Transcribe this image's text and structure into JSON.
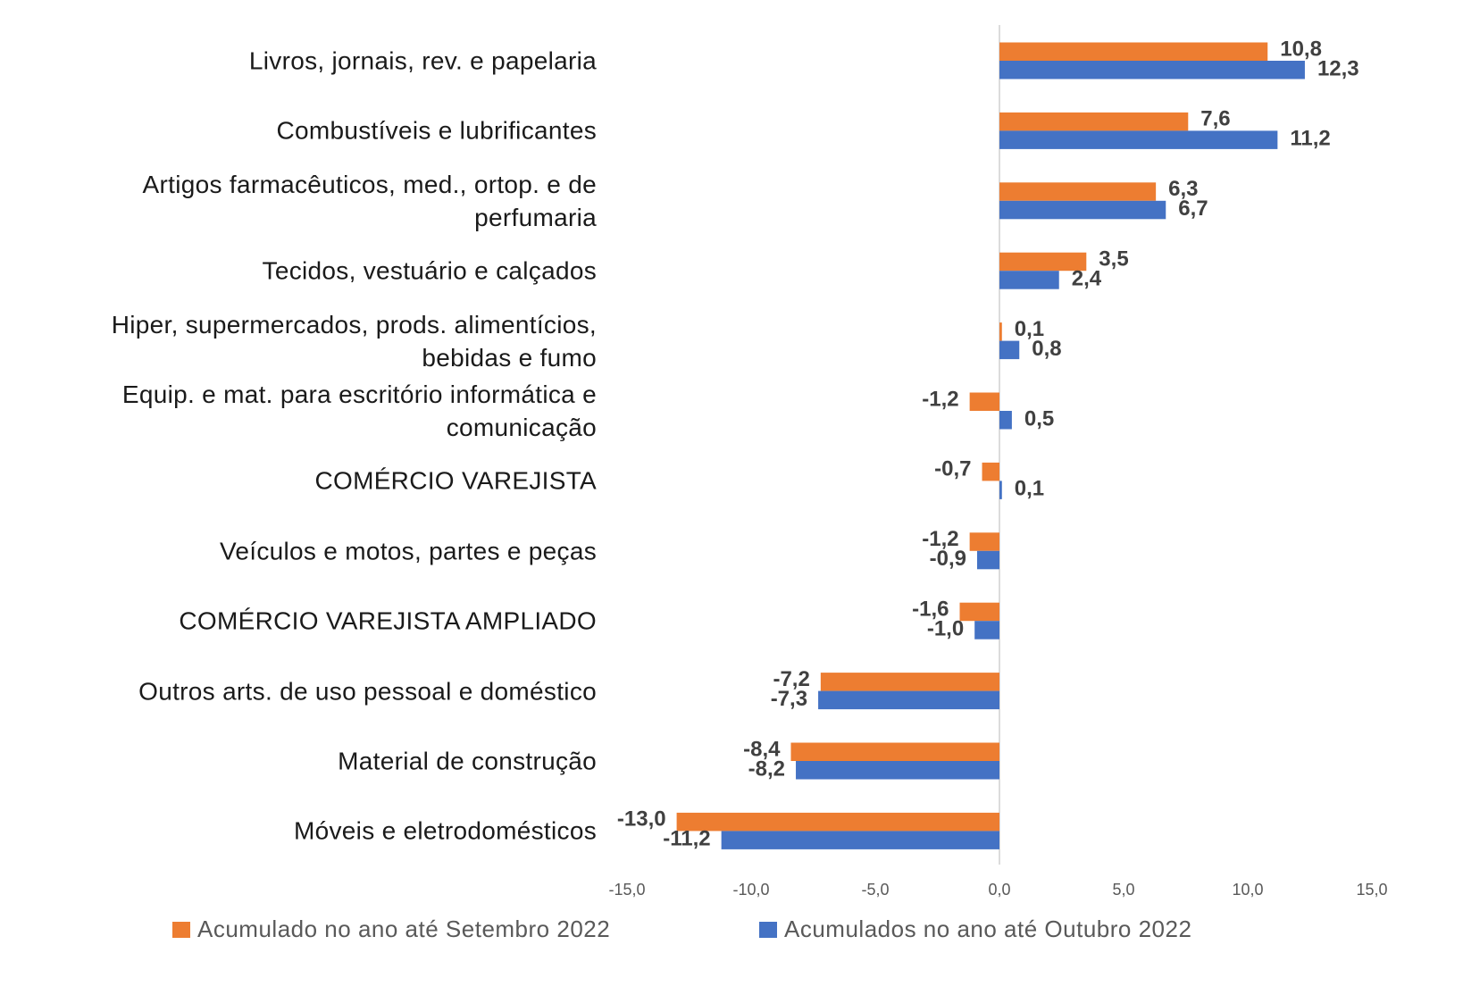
{
  "chart_data": {
    "type": "bar",
    "orientation": "horizontal",
    "categories": [
      "Livros, jornais, rev. e papelaria",
      "Combustíveis e lubrificantes",
      "Artigos farmacêuticos, med., ortop. e de\nperfumaria",
      "Tecidos, vestuário e calçados",
      "Hiper, supermercados, prods.  alimentícios,\nbebidas e fumo",
      "Equip. e mat. para escritório informática e\ncomunicação",
      "COMÉRCIO VAREJISTA",
      "Veículos e motos, partes e peças",
      "COMÉRCIO VAREJISTA AMPLIADO",
      "Outros arts. de uso pessoal e doméstico",
      "Material de construção",
      "Móveis e eletrodomésticos"
    ],
    "series": [
      {
        "name": "Acumulado no ano até Setembro 2022",
        "color": "#ED7D31",
        "values": [
          10.8,
          7.6,
          6.3,
          3.5,
          0.1,
          -1.2,
          -0.7,
          -1.2,
          -1.6,
          -7.2,
          -8.4,
          -13.0
        ],
        "value_labels": [
          "10,8",
          "7,6",
          "6,3",
          "3,5",
          "0,1",
          "-1,2",
          "-0,7",
          "-1,2",
          "-1,6",
          "-7,2",
          "-8,4",
          "-13,0"
        ]
      },
      {
        "name": "Acumulados no ano até Outubro 2022",
        "color": "#4472C4",
        "values": [
          12.3,
          11.2,
          6.7,
          2.4,
          0.8,
          0.5,
          0.1,
          -0.9,
          -1.0,
          -7.3,
          -8.2,
          -11.2
        ],
        "value_labels": [
          "12,3",
          "11,2",
          "6,7",
          "2,4",
          "0,8",
          "0,5",
          "0,1",
          "-0,9",
          "-1,0",
          "-7,3",
          "-8,2",
          "-11,2"
        ]
      }
    ],
    "xlim": [
      -15,
      15
    ],
    "xticks": [
      {
        "value": -15,
        "label": "-15,0"
      },
      {
        "value": -10,
        "label": "-10,0"
      },
      {
        "value": -5,
        "label": "-5,0"
      },
      {
        "value": 0,
        "label": "0,0"
      },
      {
        "value": 5,
        "label": "5,0"
      },
      {
        "value": 10,
        "label": "10,0"
      },
      {
        "value": 15,
        "label": "15,0"
      }
    ],
    "legend": "bottom"
  }
}
